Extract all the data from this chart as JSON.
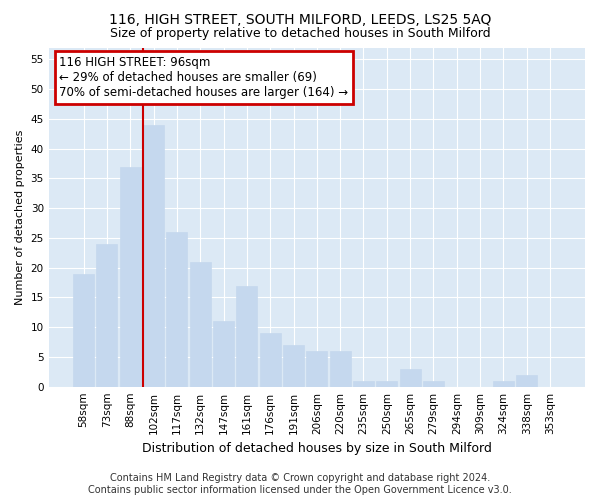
{
  "title1": "116, HIGH STREET, SOUTH MILFORD, LEEDS, LS25 5AQ",
  "title2": "Size of property relative to detached houses in South Milford",
  "xlabel": "Distribution of detached houses by size in South Milford",
  "ylabel": "Number of detached properties",
  "categories": [
    "58sqm",
    "73sqm",
    "88sqm",
    "102sqm",
    "117sqm",
    "132sqm",
    "147sqm",
    "161sqm",
    "176sqm",
    "191sqm",
    "206sqm",
    "220sqm",
    "235sqm",
    "250sqm",
    "265sqm",
    "279sqm",
    "294sqm",
    "309sqm",
    "324sqm",
    "338sqm",
    "353sqm"
  ],
  "values": [
    19,
    24,
    37,
    44,
    26,
    21,
    11,
    17,
    9,
    7,
    6,
    6,
    1,
    1,
    3,
    1,
    0,
    0,
    1,
    2,
    0
  ],
  "bar_color": "#c5d8ee",
  "bar_edge_color": "#c5d8ee",
  "highlight_index": 3,
  "red_line_index": 3,
  "annotation_title": "116 HIGH STREET: 96sqm",
  "annotation_line1": "← 29% of detached houses are smaller (69)",
  "annotation_line2": "70% of semi-detached houses are larger (164) →",
  "annotation_box_color": "#ffffff",
  "annotation_box_edge": "#cc0000",
  "ylim": [
    0,
    57
  ],
  "yticks": [
    0,
    5,
    10,
    15,
    20,
    25,
    30,
    35,
    40,
    45,
    50,
    55
  ],
  "footer1": "Contains HM Land Registry data © Crown copyright and database right 2024.",
  "footer2": "Contains public sector information licensed under the Open Government Licence v3.0.",
  "bg_color": "#ffffff",
  "plot_bg_color": "#dce9f5",
  "grid_color": "#ffffff",
  "title_fontsize": 10,
  "subtitle_fontsize": 9,
  "ylabel_fontsize": 8,
  "xlabel_fontsize": 9,
  "tick_fontsize": 7.5,
  "footer_fontsize": 7,
  "ann_fontsize": 8.5
}
